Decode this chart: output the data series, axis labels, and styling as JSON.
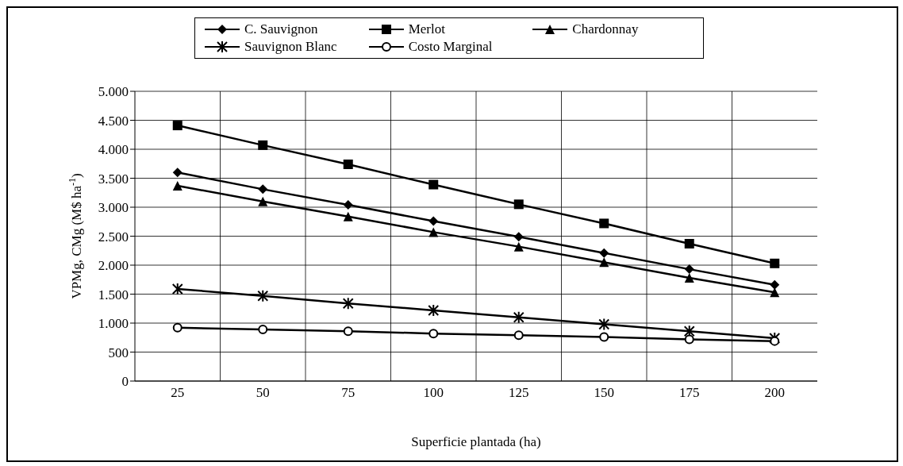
{
  "chart_data": {
    "type": "line",
    "xlabel": "Superficie plantada (ha)",
    "ylabel": "VPMg, CMg (M$ ha$^{-1}$)",
    "categories": [
      "25",
      "50",
      "75",
      "100",
      "125",
      "150",
      "175",
      "200"
    ],
    "series": [
      {
        "name": "C. Sauvignon",
        "color": "#000000",
        "marker": "diamond",
        "values": [
          3600,
          3310,
          3040,
          2760,
          2490,
          2210,
          1930,
          1660
        ]
      },
      {
        "name": "Merlot",
        "color": "#000000",
        "marker": "square",
        "values": [
          4410,
          4070,
          3740,
          3390,
          3050,
          2720,
          2370,
          2030
        ]
      },
      {
        "name": "Chardonnay",
        "color": "#000000",
        "marker": "triangle",
        "values": [
          3370,
          3100,
          2840,
          2570,
          2320,
          2050,
          1780,
          1530
        ]
      },
      {
        "name": "Sauvignon Blanc",
        "color": "#000000",
        "marker": "cross",
        "values": [
          1590,
          1470,
          1340,
          1220,
          1100,
          980,
          860,
          740
        ]
      },
      {
        "name": "Costo Marginal",
        "color": "#000000",
        "marker": "circle",
        "values": [
          920,
          890,
          860,
          820,
          790,
          760,
          720,
          690
        ]
      }
    ],
    "ylim": [
      0,
      5000
    ],
    "yticks": [
      {
        "value": 0,
        "label": "0"
      },
      {
        "value": 500,
        "label": "500"
      },
      {
        "value": 1000,
        "label": "1.000"
      },
      {
        "value": 1500,
        "label": "1.500"
      },
      {
        "value": 2000,
        "label": "2.000"
      },
      {
        "value": 2500,
        "label": "2.500"
      },
      {
        "value": 3000,
        "label": "3.000"
      },
      {
        "value": 3500,
        "label": "3.500"
      },
      {
        "value": 4000,
        "label": "4.000"
      },
      {
        "value": 4500,
        "label": "4.500"
      },
      {
        "value": 5000,
        "label": "5.000"
      }
    ],
    "grid": true,
    "legend": "top",
    "line_style": "solid"
  }
}
